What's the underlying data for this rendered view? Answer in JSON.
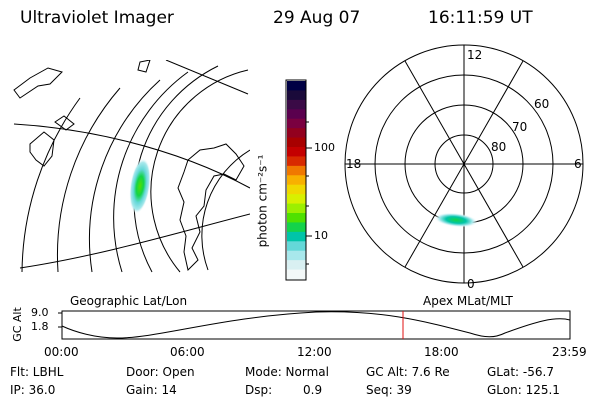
{
  "header": {
    "instrument": "Ultraviolet Imager",
    "date": "29 Aug 07",
    "time": "16:11:59 UT"
  },
  "colorbar": {
    "label": "photon cm⁻²s⁻¹",
    "ticks": [
      "100",
      "10"
    ],
    "colors": [
      "#000044",
      "#1a0a3a",
      "#3a0a46",
      "#5a004e",
      "#7a0040",
      "#92001e",
      "#a80000",
      "#c40000",
      "#d82a00",
      "#f07800",
      "#f8b000",
      "#f0d800",
      "#d8f000",
      "#9cef00",
      "#4fe100",
      "#14d34a",
      "#00c4a8",
      "#64d8d8",
      "#a8e8ec",
      "#d9f0f2",
      "#f3f8f8"
    ]
  },
  "polar_plot": {
    "labels": [
      "12",
      "18",
      "6",
      "0",
      "60",
      "70",
      "80"
    ],
    "mlat_rings": [
      60,
      70,
      80
    ],
    "mlt_ticks": [
      "12",
      "18",
      "6",
      "0"
    ]
  },
  "maps": {
    "left_label": "Geographic Lat/Lon",
    "right_label": "Apex MLat/MLT"
  },
  "altitude_plot": {
    "ylabel": "GC Alt",
    "yticks": [
      "9.0",
      "1.8"
    ],
    "xticks": [
      "00:00",
      "06:00",
      "12:00",
      "18:00",
      "23:59"
    ],
    "marker_time": "16:11:59",
    "marker_color": "#e01010"
  },
  "status": {
    "flt": "Flt: LBHL",
    "ip": "IP: 36.0",
    "door": "Door: Open",
    "gain": "Gain: 14",
    "mode": "Mode: Normal",
    "dsp": "Dsp:",
    "dsp_value": "0.9",
    "gc_alt": "GC Alt: 7.6 Re",
    "seq": "Seq: 39",
    "glat": "GLat: -56.7",
    "glon": "GLon: 125.1"
  }
}
